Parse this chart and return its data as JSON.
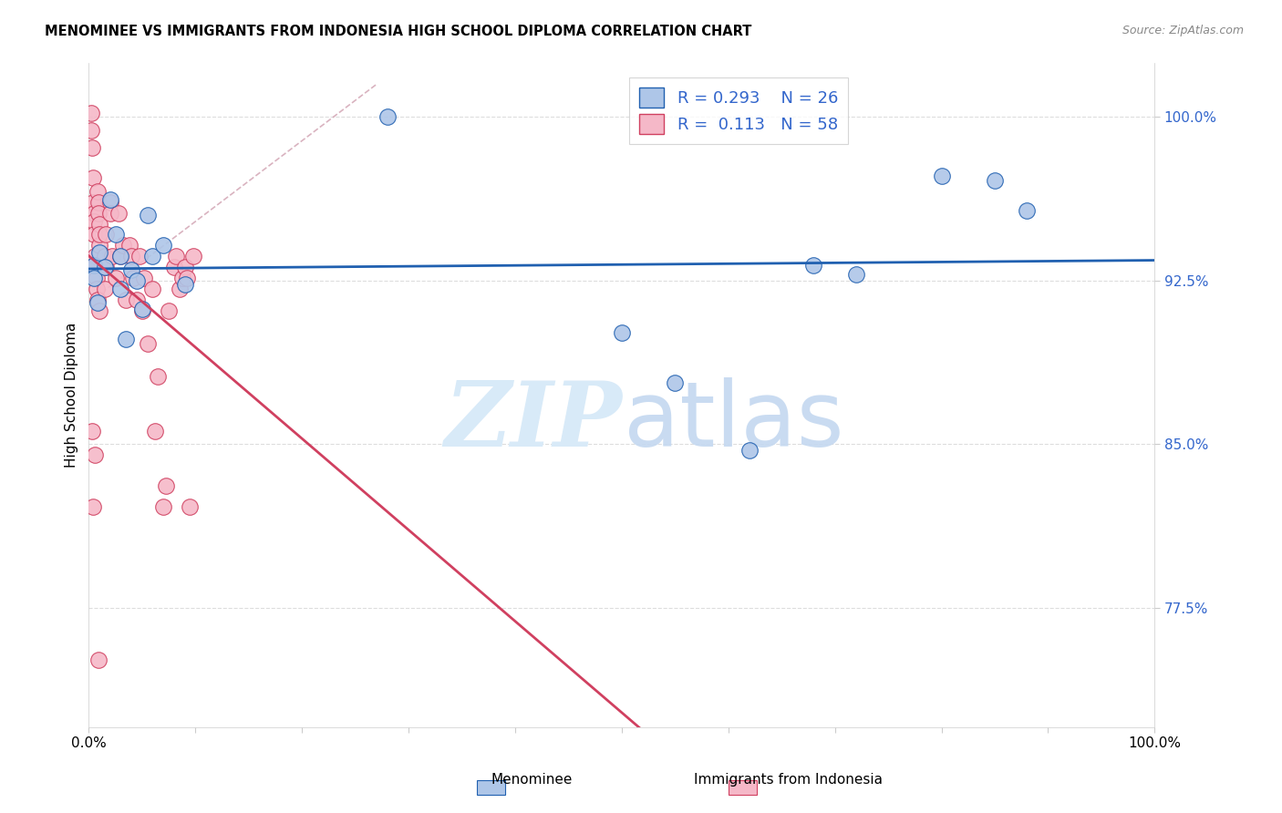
{
  "title": "MENOMINEE VS IMMIGRANTS FROM INDONESIA HIGH SCHOOL DIPLOMA CORRELATION CHART",
  "source": "Source: ZipAtlas.com",
  "ylabel": "High School Diploma",
  "yticks": [
    77.5,
    85.0,
    92.5,
    100.0
  ],
  "ytick_labels": [
    "77.5%",
    "85.0%",
    "92.5%",
    "100.0%"
  ],
  "xmin": 0.0,
  "xmax": 1.0,
  "ymin": 72.0,
  "ymax": 102.5,
  "legend_blue_R": "0.293",
  "legend_blue_N": "26",
  "legend_pink_R": "0.113",
  "legend_pink_N": "58",
  "blue_color": "#aec6e8",
  "pink_color": "#f5b8c8",
  "trendline_blue_color": "#2060b0",
  "trendline_pink_color": "#d04060",
  "trendline_dashed_color": "#d0a0b0",
  "grid_color": "#dddddd",
  "blue_points_x": [
    0.005,
    0.005,
    0.008,
    0.01,
    0.015,
    0.02,
    0.025,
    0.03,
    0.03,
    0.035,
    0.04,
    0.045,
    0.05,
    0.055,
    0.06,
    0.07,
    0.09,
    0.28,
    0.5,
    0.55,
    0.62,
    0.68,
    0.72,
    0.8,
    0.85,
    0.88
  ],
  "blue_points_y": [
    93.2,
    92.6,
    91.5,
    93.8,
    93.1,
    96.2,
    94.6,
    92.1,
    93.6,
    89.8,
    93.0,
    92.5,
    91.2,
    95.5,
    93.6,
    94.1,
    92.3,
    100.0,
    90.1,
    87.8,
    84.7,
    93.2,
    92.8,
    97.3,
    97.1,
    95.7
  ],
  "pink_points_x": [
    0.002,
    0.002,
    0.003,
    0.004,
    0.004,
    0.005,
    0.005,
    0.005,
    0.006,
    0.006,
    0.007,
    0.007,
    0.008,
    0.008,
    0.009,
    0.009,
    0.01,
    0.01,
    0.01,
    0.015,
    0.015,
    0.016,
    0.016,
    0.02,
    0.02,
    0.022,
    0.025,
    0.028,
    0.03,
    0.032,
    0.035,
    0.038,
    0.04,
    0.042,
    0.045,
    0.048,
    0.05,
    0.052,
    0.055,
    0.06,
    0.062,
    0.065,
    0.07,
    0.072,
    0.075,
    0.08,
    0.082,
    0.085,
    0.088,
    0.09,
    0.092,
    0.095,
    0.098,
    0.01,
    0.003,
    0.004,
    0.006,
    0.009
  ],
  "pink_points_y": [
    100.2,
    99.4,
    98.6,
    97.2,
    96.1,
    95.6,
    95.2,
    94.6,
    93.6,
    93.2,
    92.6,
    92.1,
    91.6,
    96.6,
    96.1,
    95.6,
    94.1,
    95.1,
    94.6,
    93.6,
    92.1,
    94.6,
    93.1,
    96.1,
    95.6,
    93.6,
    92.6,
    95.6,
    93.6,
    94.1,
    91.6,
    94.1,
    93.6,
    92.6,
    91.6,
    93.6,
    91.1,
    92.6,
    89.6,
    92.1,
    85.6,
    88.1,
    82.1,
    83.1,
    91.1,
    93.1,
    93.6,
    92.1,
    92.6,
    93.1,
    92.6,
    82.1,
    93.6,
    91.1,
    85.6,
    82.1,
    84.5,
    75.1
  ]
}
